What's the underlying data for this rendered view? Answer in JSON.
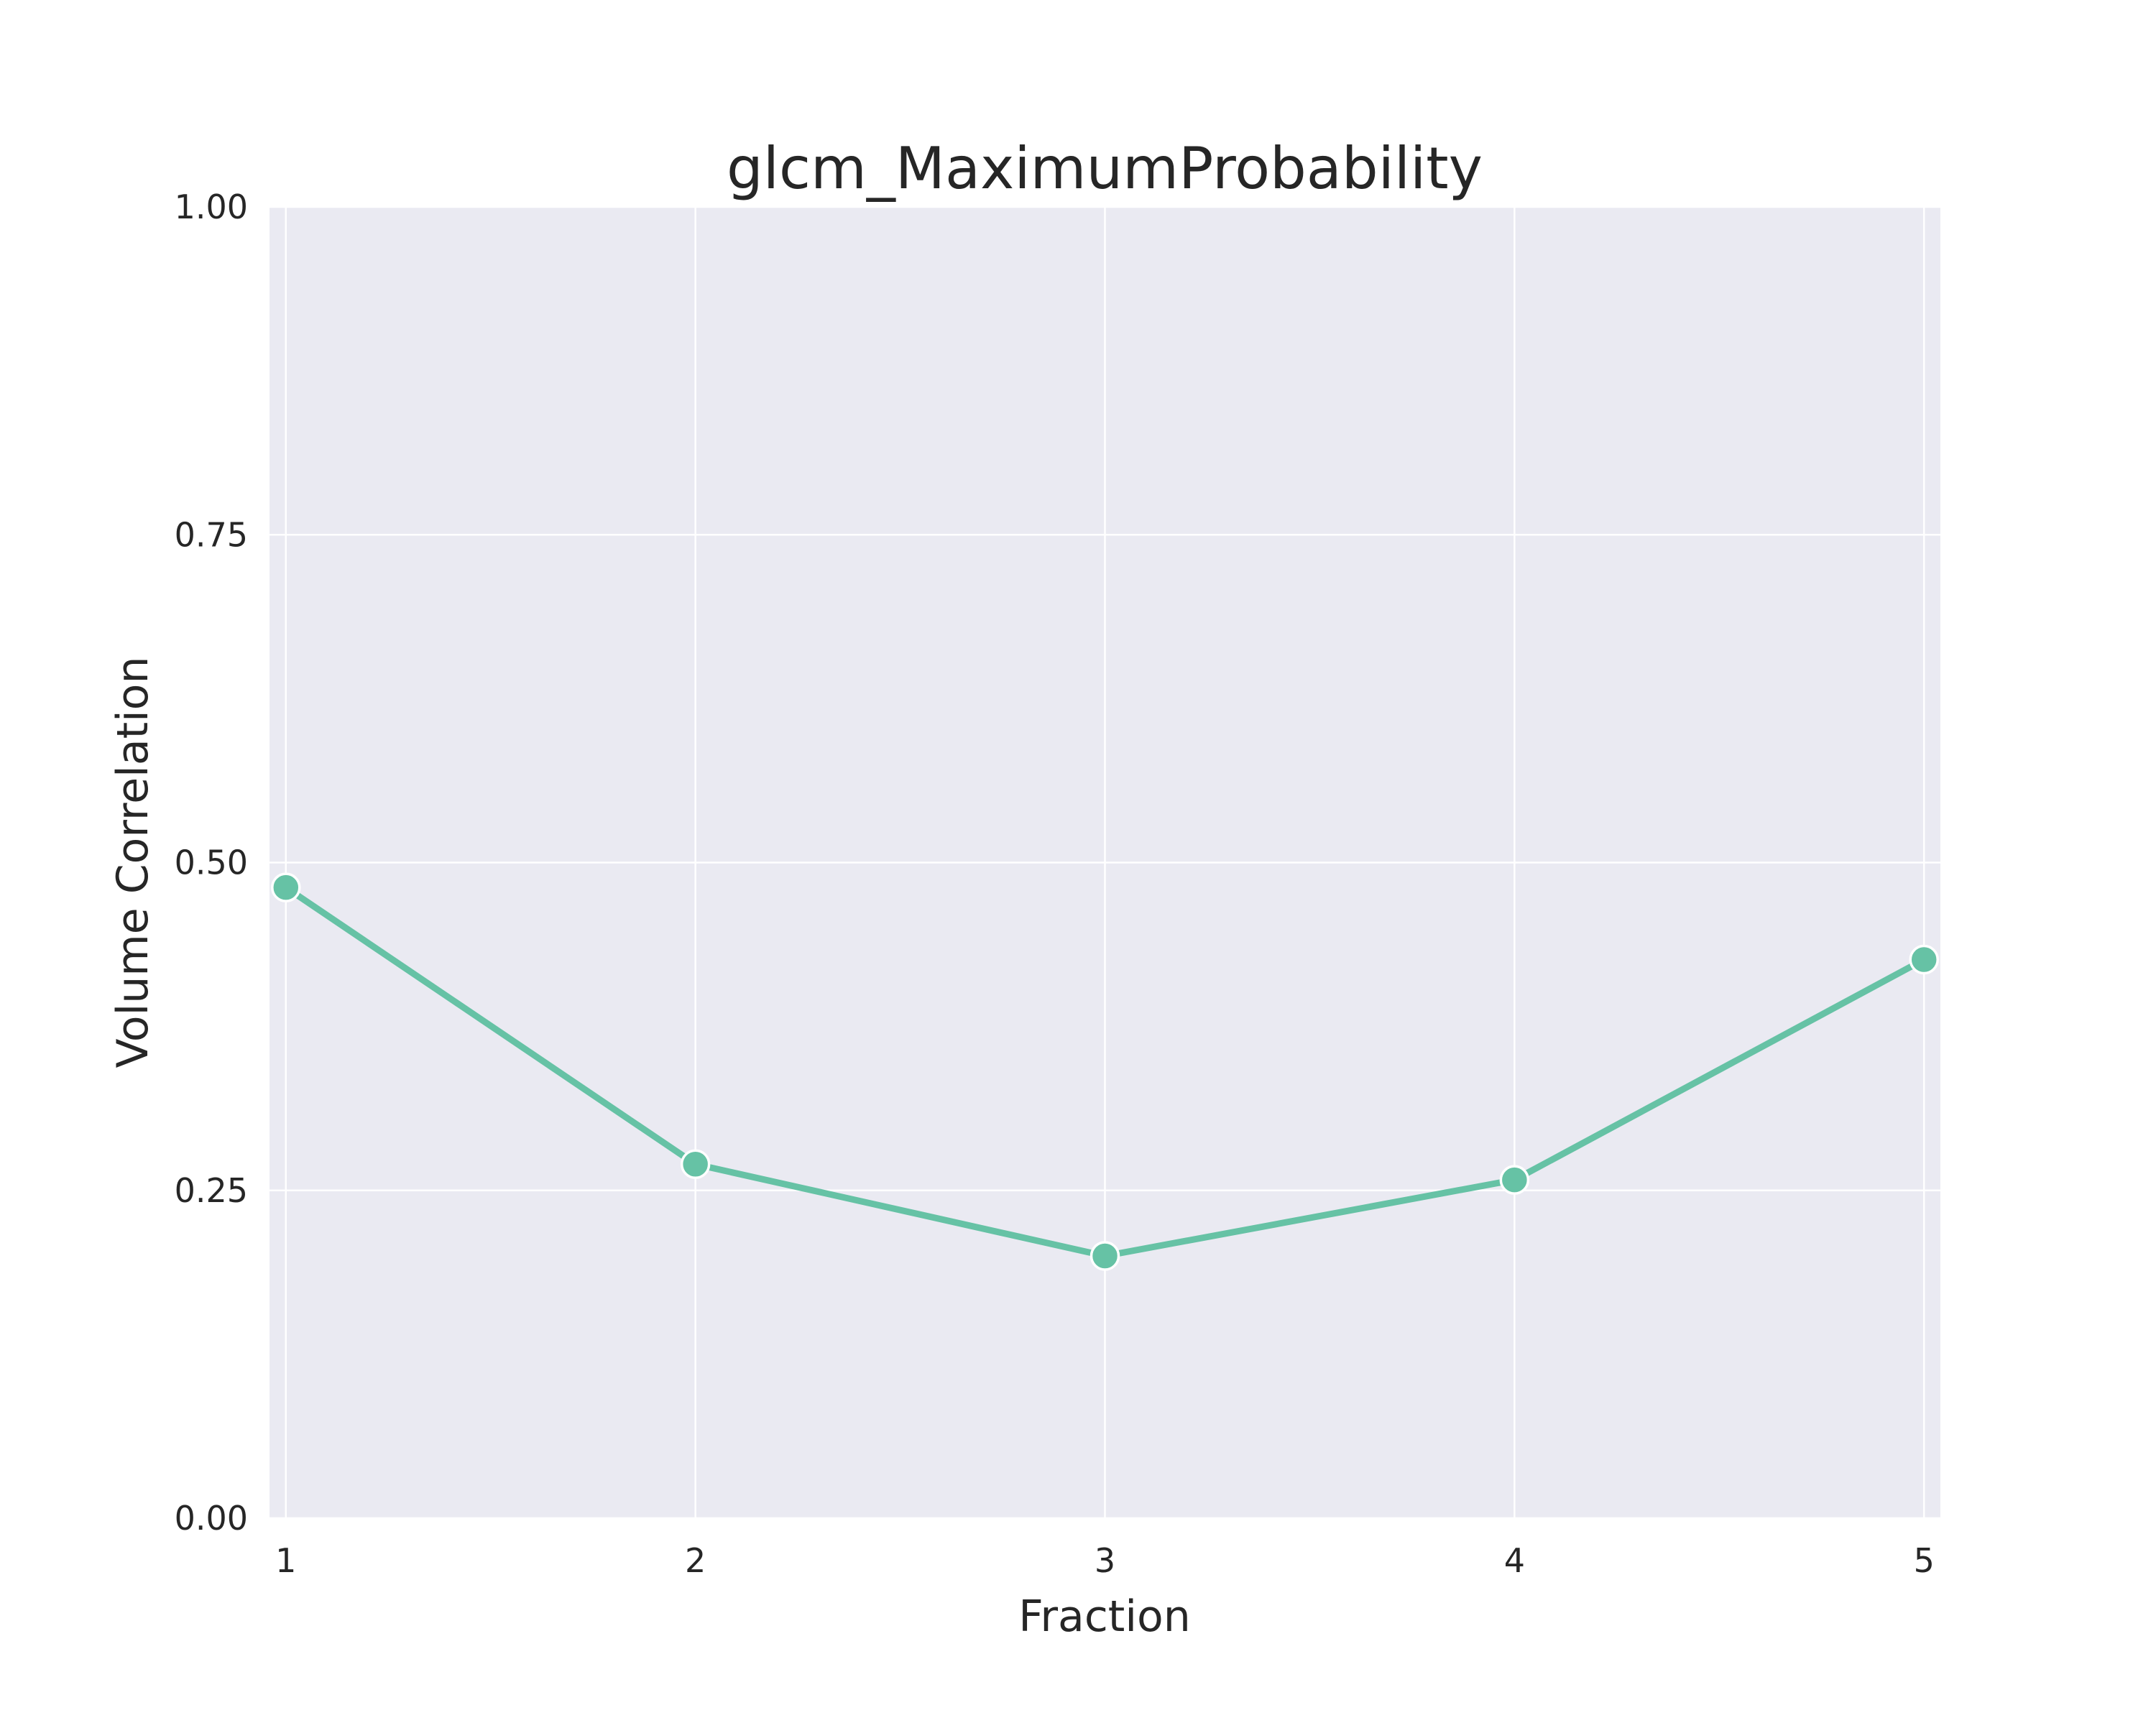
{
  "chart_data": {
    "type": "line",
    "title": "glcm_MaximumProbability",
    "xlabel": "Fraction",
    "ylabel": "Volume Correlation",
    "x": [
      1,
      2,
      3,
      4,
      5
    ],
    "x_tick_labels": [
      "1",
      "2",
      "3",
      "4",
      "5"
    ],
    "y_ticks": [
      0.0,
      0.25,
      0.5,
      0.75,
      1.0
    ],
    "y_tick_labels": [
      "0.00",
      "0.25",
      "0.50",
      "0.75",
      "1.00"
    ],
    "xlim": [
      0.96,
      5.04
    ],
    "ylim": [
      0,
      1
    ],
    "grid": true,
    "series": [
      {
        "values": [
          0.481,
          0.27,
          0.2,
          0.258,
          0.426
        ],
        "color": "#66c2a5",
        "marker": "circle"
      }
    ],
    "colors": {
      "plot_background": "#eaeaf2",
      "grid": "#ffffff",
      "text": "#262626"
    }
  }
}
